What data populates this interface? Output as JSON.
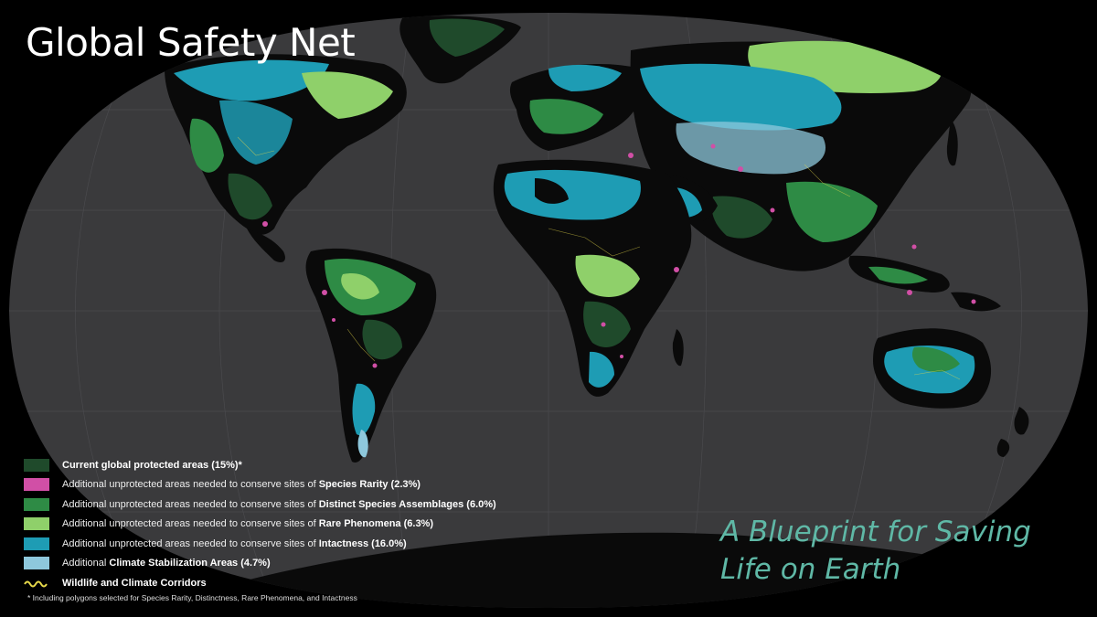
{
  "title": "Global Safety Net",
  "subtitle_line1": "A Blueprint for Saving",
  "subtitle_line2": "Life on Earth",
  "colors": {
    "ocean": "#3a3a3c",
    "land": "#0a0a0a",
    "protected": "#1f4a2b",
    "species_rarity": "#d14fa6",
    "distinct_assemblages": "#2e8b45",
    "rare_phenomena": "#8fd06a",
    "intactness": "#1e9cb4",
    "climate_stabilization": "#8ec8dc",
    "corridors": "#e6d84a",
    "subtitle": "#5fb8a6"
  },
  "legend": [
    {
      "prefix": "",
      "bold": "Current global protected areas (15%)*",
      "color": "#1f4a2b"
    },
    {
      "prefix": "Additional unprotected areas needed to conserve sites of ",
      "bold": "Species Rarity (2.3%)",
      "color": "#d14fa6"
    },
    {
      "prefix": "Additional unprotected areas needed to conserve sites of ",
      "bold": "Distinct Species Assemblages (6.0%)",
      "color": "#2e8b45"
    },
    {
      "prefix": "Additional unprotected areas needed to conserve sites of ",
      "bold": "Rare Phenomena (6.3%)",
      "color": "#8fd06a"
    },
    {
      "prefix": "Additional unprotected areas needed to conserve sites of ",
      "bold": "Intactness (16.0%)",
      "color": "#1e9cb4"
    },
    {
      "prefix": "Additional ",
      "bold": "Climate Stabilization Areas (4.7%)",
      "color": "#8ec8dc"
    },
    {
      "prefix": "",
      "bold": "Wildlife and Climate Corridors",
      "color": "#e6d84a"
    }
  ],
  "footnote": "* Including polygons selected for Species Rarity, Distinctness, Rare Phenomena, and Intactness"
}
